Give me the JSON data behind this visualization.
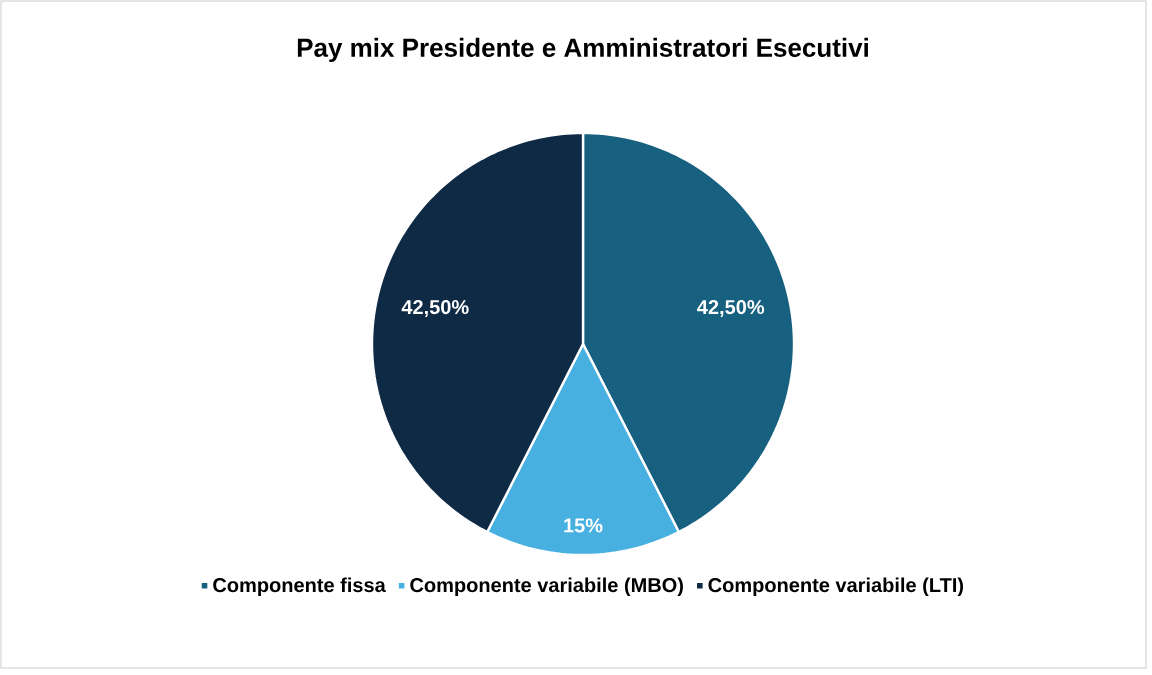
{
  "chart_data": {
    "type": "pie",
    "title": "Pay mix Presidente e Amministratori Esecutivi",
    "categories": [
      "Componente fissa",
      "Componente variabile (MBO)",
      "Componente variabile (LTI)"
    ],
    "values": [
      42.5,
      15,
      42.5
    ],
    "value_labels": [
      "42,50%",
      "15%",
      "42,50%"
    ],
    "colors": [
      "#17607f",
      "#47b0e0",
      "#0f2a45"
    ],
    "legend": "bottom"
  }
}
